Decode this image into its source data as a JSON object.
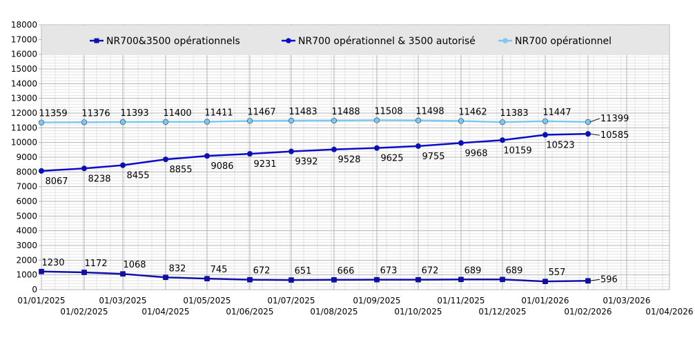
{
  "chart_data": {
    "type": "line",
    "x": [
      "2025-01-01",
      "2025-02-01",
      "2025-03-01",
      "2025-04-01",
      "2025-05-01",
      "2025-06-01",
      "2025-07-01",
      "2025-08-01",
      "2025-09-01",
      "2025-10-01",
      "2025-11-01",
      "2025-12-01",
      "2026-01-01",
      "2026-02-01"
    ],
    "x_tick_labels": [
      "01/01/2025",
      "01/02/2025",
      "01/03/2025",
      "01/04/2025",
      "01/05/2025",
      "01/06/2025",
      "01/07/2025",
      "01/08/2025",
      "01/09/2025",
      "01/10/2025",
      "01/11/2025",
      "01/12/2025",
      "01/01/2026",
      "01/02/2026",
      "01/03/2026",
      "01/04/2026"
    ],
    "xlim": [
      "2025-01-01",
      "2026-04-01"
    ],
    "ylim": [
      0,
      18000
    ],
    "y_ticks": [
      0,
      1000,
      2000,
      3000,
      4000,
      5000,
      6000,
      7000,
      8000,
      9000,
      10000,
      11000,
      12000,
      13000,
      14000,
      15000,
      16000,
      17000,
      18000
    ],
    "grid": true,
    "legend_position": "top",
    "series": [
      {
        "name": "NR700&3500 opérationnels",
        "color": "#1010a8",
        "marker": "square",
        "values": [
          1230,
          1172,
          1068,
          832,
          745,
          672,
          651,
          666,
          673,
          672,
          689,
          689,
          557,
          596
        ]
      },
      {
        "name": "NR700 opérationnel & 3500 autorisé",
        "color": "#0a0ac8",
        "marker": "circle",
        "values": [
          8067,
          8238,
          8455,
          8855,
          9086,
          9231,
          9392,
          9528,
          9625,
          9755,
          9968,
          10159,
          10523,
          10585
        ]
      },
      {
        "name": "NR700 opérationnel",
        "color": "#7ec8f0",
        "marker": "circle",
        "values": [
          11359,
          11376,
          11393,
          11400,
          11411,
          11467,
          11483,
          11488,
          11508,
          11498,
          11462,
          11383,
          11447,
          11399
        ]
      }
    ]
  }
}
